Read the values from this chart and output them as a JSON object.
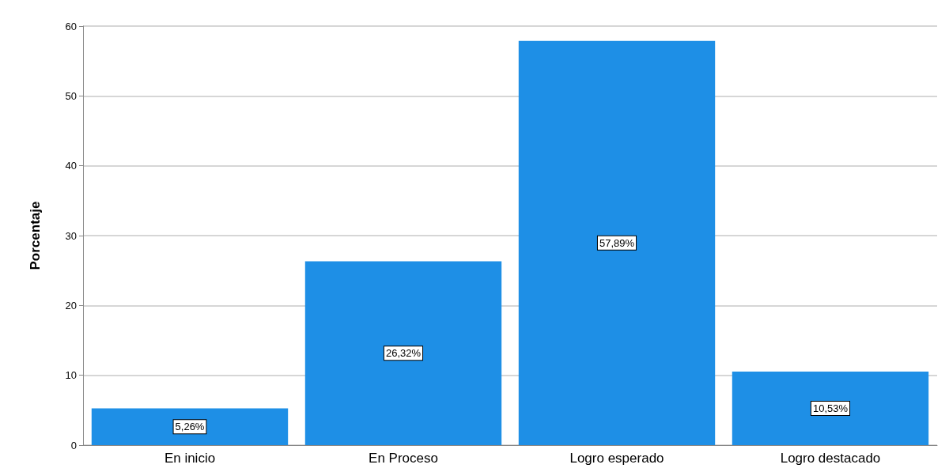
{
  "chart_data": {
    "type": "bar",
    "ylabel": "Porcentaje",
    "categories": [
      "En inicio",
      "En Proceso",
      "Logro esperado",
      "Logro destacado"
    ],
    "values": [
      5.26,
      26.32,
      57.89,
      10.53
    ],
    "value_labels": [
      "5,26%",
      "26,32%",
      "57,89%",
      "10,53%"
    ],
    "color": "#1e8fe6",
    "ylim": [
      0,
      60
    ],
    "yticks": [
      0,
      10,
      20,
      30,
      40,
      50,
      60
    ],
    "grid": "y"
  }
}
